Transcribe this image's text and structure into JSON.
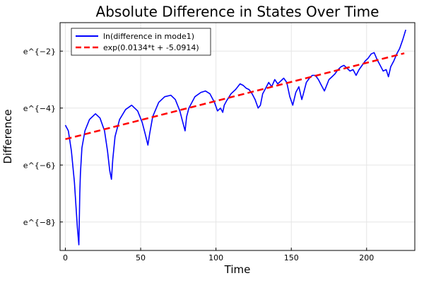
{
  "chart_data": {
    "type": "line",
    "title": "Absolute Difference in States Over Time",
    "xlabel": "Time",
    "ylabel": "Difference",
    "xlim": [
      -3.5,
      232
    ],
    "ylim": [
      -9.0,
      -1.0
    ],
    "y_scale": "log (natural)",
    "grid": true,
    "legend_position": "top-left",
    "x_ticks": [
      {
        "value": 0,
        "label": "0"
      },
      {
        "value": 50,
        "label": "50"
      },
      {
        "value": 100,
        "label": "100"
      },
      {
        "value": 150,
        "label": "150"
      },
      {
        "value": 200,
        "label": "200"
      }
    ],
    "y_ticks": [
      {
        "value": -2,
        "label": "e^{−2}"
      },
      {
        "value": -4,
        "label": "e^{−4}"
      },
      {
        "value": -6,
        "label": "e^{−6}"
      },
      {
        "value": -8,
        "label": "e^{−8}"
      }
    ],
    "series": [
      {
        "name": "ln(difference in mode1)",
        "color": "#0000ff",
        "style": "solid",
        "x": [
          0,
          2,
          4,
          6,
          8,
          9,
          9.6,
          10,
          11,
          13,
          16,
          20,
          23,
          26,
          28,
          29.5,
          30.6,
          31.5,
          33,
          36,
          40,
          44,
          48,
          51,
          53,
          54.8,
          56,
          58,
          62,
          66,
          70,
          73,
          76,
          78,
          79.5,
          80.5,
          82,
          86,
          90,
          93,
          96,
          99,
          101,
          103,
          104.5,
          105.5,
          107,
          110,
          113,
          116,
          118,
          120,
          122,
          124,
          126,
          128,
          129.5,
          131,
          133,
          135,
          137,
          139,
          141,
          143,
          145,
          147,
          149,
          151,
          153,
          155,
          157,
          158,
          159,
          160,
          162,
          164,
          166,
          168,
          170,
          172,
          173.5,
          175,
          177,
          179,
          181,
          183,
          185,
          187,
          189,
          191,
          193,
          195,
          197,
          199,
          201,
          203,
          205,
          207,
          209,
          211,
          213,
          214.5,
          216,
          218,
          220,
          222,
          224,
          226
        ],
        "y": [
          -4.6,
          -4.8,
          -5.5,
          -6.6,
          -8.2,
          -8.8,
          -7.0,
          -6.3,
          -5.4,
          -4.8,
          -4.4,
          -4.2,
          -4.35,
          -4.8,
          -5.5,
          -6.2,
          -6.5,
          -5.8,
          -5.0,
          -4.4,
          -4.05,
          -3.9,
          -4.1,
          -4.5,
          -4.9,
          -5.3,
          -4.9,
          -4.3,
          -3.8,
          -3.6,
          -3.55,
          -3.7,
          -4.1,
          -4.5,
          -4.8,
          -4.3,
          -4.0,
          -3.6,
          -3.45,
          -3.4,
          -3.5,
          -3.8,
          -4.1,
          -4.0,
          -4.15,
          -3.9,
          -3.75,
          -3.5,
          -3.35,
          -3.15,
          -3.2,
          -3.3,
          -3.35,
          -3.5,
          -3.7,
          -4.0,
          -3.9,
          -3.5,
          -3.3,
          -3.1,
          -3.25,
          -3.0,
          -3.15,
          -3.05,
          -2.95,
          -3.1,
          -3.6,
          -3.9,
          -3.45,
          -3.25,
          -3.7,
          -3.5,
          -3.3,
          -3.1,
          -2.95,
          -2.85,
          -2.85,
          -3.0,
          -3.2,
          -3.4,
          -3.2,
          -3.0,
          -2.9,
          -2.8,
          -2.65,
          -2.55,
          -2.5,
          -2.6,
          -2.7,
          -2.65,
          -2.85,
          -2.65,
          -2.5,
          -2.35,
          -2.25,
          -2.1,
          -2.05,
          -2.3,
          -2.5,
          -2.7,
          -2.65,
          -2.9,
          -2.55,
          -2.35,
          -2.1,
          -1.9,
          -1.6,
          -1.25
        ]
      },
      {
        "name": "exp(0.0134*t + -5.0914)",
        "color": "#ff0000",
        "style": "dashed",
        "x": [
          0,
          225
        ],
        "y": [
          -5.0914,
          -2.0764
        ]
      }
    ]
  }
}
